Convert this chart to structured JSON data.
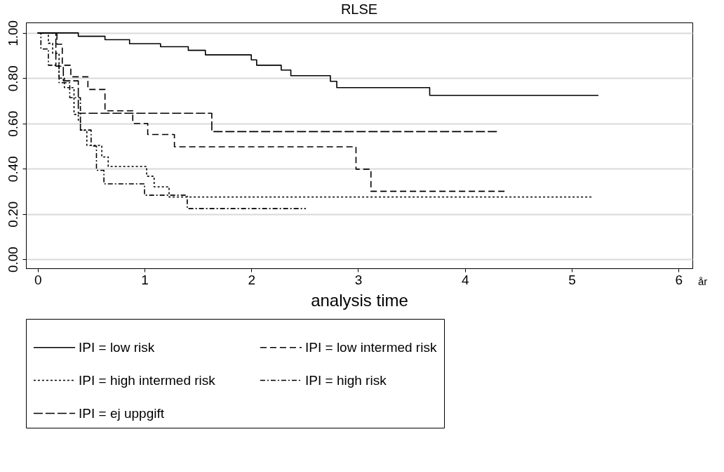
{
  "chart_data": {
    "type": "step",
    "title": "RLSE",
    "xlabel": "analysis time",
    "annotations": [
      "år"
    ],
    "xlim": [
      -0.11,
      6.13
    ],
    "ylim": [
      -0.04,
      1.046
    ],
    "xticks": [
      0,
      1,
      2,
      3,
      4,
      5,
      6
    ],
    "yticks": [
      {
        "value": 0,
        "label": "0.00"
      },
      {
        "value": 0.2,
        "label": "0.20"
      },
      {
        "value": 0.4,
        "label": "0.40"
      },
      {
        "value": 0.6,
        "label": "0.60"
      },
      {
        "value": 0.8,
        "label": "0.80"
      },
      {
        "value": 1,
        "label": "1.00"
      }
    ],
    "grid": "y",
    "legend": "bottom",
    "series": [
      {
        "name": "IPI = low risk",
        "color": "#000000",
        "line_style": "solid",
        "x": [
          0,
          0.38,
          0.63,
          0.86,
          1.15,
          1.41,
          1.57,
          2.0,
          2.05,
          2.28,
          2.37,
          2.74,
          2.8,
          3.67,
          5.25
        ],
        "values": [
          1.0,
          0.985,
          0.97,
          0.952,
          0.939,
          0.923,
          0.903,
          0.881,
          0.857,
          0.836,
          0.811,
          0.786,
          0.758,
          0.724,
          0.724
        ]
      },
      {
        "name": "IPI = low intermed risk",
        "color": "#000000",
        "line_style": "dashed",
        "x": [
          0,
          0.18,
          0.23,
          0.31,
          0.47,
          0.63,
          0.89,
          1.03,
          1.28,
          2.98,
          3.12,
          4.38
        ],
        "values": [
          1.0,
          0.95,
          0.857,
          0.806,
          0.75,
          0.656,
          0.6,
          0.551,
          0.497,
          0.398,
          0.3,
          0.3
        ]
      },
      {
        "name": "IPI = high intermed risk",
        "color": "#000000",
        "line_style": "dotted",
        "x": [
          0,
          0.1,
          0.14,
          0.2,
          0.25,
          0.34,
          0.38,
          0.4,
          0.46,
          0.6,
          0.66,
          1.02,
          1.09,
          1.23,
          5.2
        ],
        "values": [
          1.0,
          0.954,
          0.91,
          0.8,
          0.758,
          0.64,
          0.615,
          0.57,
          0.503,
          0.452,
          0.41,
          0.367,
          0.32,
          0.275,
          0.275
        ]
      },
      {
        "name": "IPI = high risk",
        "color": "#000000",
        "line_style": "dashdot",
        "x": [
          0,
          0.03,
          0.1,
          0.2,
          0.3,
          0.4,
          0.5,
          0.55,
          0.62,
          1.0,
          1.4,
          2.51
        ],
        "values": [
          1.0,
          0.929,
          0.857,
          0.78,
          0.714,
          0.571,
          0.5,
          0.393,
          0.333,
          0.283,
          0.224,
          0.224
        ]
      },
      {
        "name": "IPI = ej uppgift",
        "color": "#000000",
        "line_style": "longdash",
        "x": [
          0,
          0.17,
          0.24,
          0.38,
          1.63,
          4.3
        ],
        "values": [
          1.0,
          0.853,
          0.788,
          0.645,
          0.564,
          0.564
        ]
      }
    ]
  }
}
